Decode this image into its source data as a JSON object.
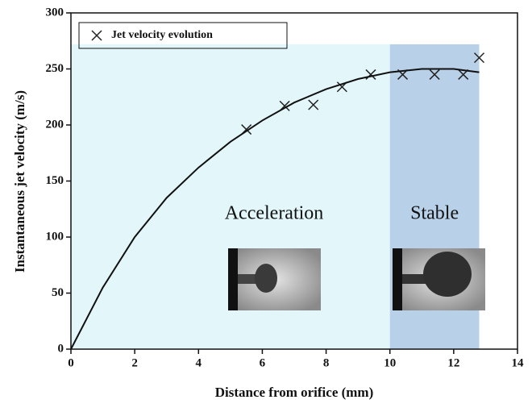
{
  "chart_data": {
    "type": "scatter",
    "xlabel": "Distance from orifice (mm)",
    "ylabel": "Instantaneous jet velocity (m/s)",
    "xlim": [
      0,
      14
    ],
    "xticks": [
      0,
      2,
      4,
      6,
      8,
      10,
      12,
      14
    ],
    "ylim": [
      0,
      300
    ],
    "yticks": [
      0,
      50,
      100,
      150,
      200,
      250,
      300
    ],
    "regions": [
      {
        "label": "Acceleration",
        "x": [
          0,
          10
        ],
        "top": 272,
        "color": "#e3f7fb"
      },
      {
        "label": "Stable",
        "x": [
          10,
          12.8
        ],
        "top": 272,
        "color": "#b8d0e8"
      }
    ],
    "series": [
      {
        "name": "Jet velocity evolution",
        "marker": "x",
        "color": "#222",
        "x": [
          5.5,
          6.7,
          7.6,
          8.5,
          9.4,
          10.4,
          11.4,
          12.3,
          12.8
        ],
        "values": [
          196,
          217,
          218,
          234,
          245,
          245,
          245,
          245,
          260
        ]
      },
      {
        "marker": "line",
        "color": "#111",
        "x": [
          0,
          1,
          2,
          3,
          4,
          5,
          6,
          7,
          8,
          9,
          10,
          11,
          12,
          12.8
        ],
        "values": [
          0,
          55,
          100,
          135,
          162,
          185,
          204,
          220,
          232,
          241,
          247,
          250,
          250,
          247
        ]
      }
    ],
    "legend": "upper-left"
  }
}
